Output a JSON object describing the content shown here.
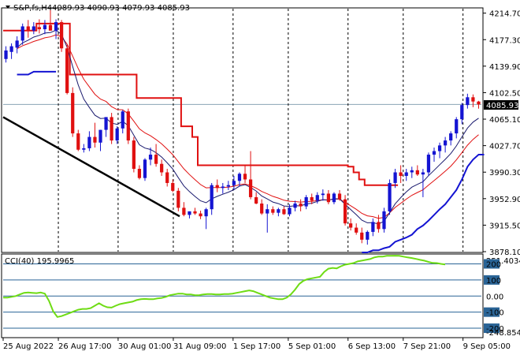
{
  "header": {
    "symbol_line": "S&P,fs,H4",
    "ohlc": "4089.93 4090.93 4079.93 4085.93",
    "menu_icon": "triangle-down-icon"
  },
  "price_axis": {
    "labels": [
      "4214.70",
      "4177.30",
      "4139.90",
      "4102.50",
      "4065.10",
      "4027.70",
      "3990.30",
      "3952.90",
      "3915.50",
      "3878.10"
    ],
    "current_price_tag": "4085.93"
  },
  "cci": {
    "label": "CCI(40) 195.9965",
    "axis_labels": [
      "251.4034",
      "200",
      "100",
      "0.00",
      "-100",
      "-200",
      "-248.8547"
    ],
    "levels": [
      200,
      100,
      0,
      -100,
      -200
    ],
    "range": [
      -248.8547,
      251.4034
    ]
  },
  "time_axis": {
    "labels": [
      "25 Aug 2022",
      "26 Aug 17:00",
      "30 Aug 01:00",
      "31 Aug 09:00",
      "1 Sep 17:00",
      "5 Sep 01:00",
      "6 Sep 13:00",
      "7 Sep 21:00",
      "9 Sep 05:00"
    ]
  },
  "colors": {
    "bull": "#1414d2",
    "bear": "#e01010",
    "envelope_upper": "#e01010",
    "envelope_lower": "#1414d2",
    "ema_fast": "#e01010",
    "ema_slow": "#1a1a6e",
    "trendline": "#000000",
    "cci_line": "#6edc14",
    "cci_level": "#2a6496",
    "price_tag_bg": "#000000"
  },
  "chart_data": {
    "type": "candlestick",
    "ylim": [
      3878.1,
      4221.0
    ],
    "candles": [
      [
        4150,
        4168,
        4145,
        4162
      ],
      [
        4160,
        4172,
        4150,
        4168
      ],
      [
        4166,
        4182,
        4158,
        4176
      ],
      [
        4176,
        4200,
        4170,
        4196
      ],
      [
        4196,
        4205,
        4180,
        4190
      ],
      [
        4190,
        4202,
        4185,
        4196
      ],
      [
        4195,
        4206,
        4186,
        4192
      ],
      [
        4192,
        4205,
        4185,
        4198
      ],
      [
        4198,
        4220,
        4190,
        4190
      ],
      [
        4190,
        4206,
        4178,
        4202
      ],
      [
        4202,
        4205,
        4160,
        4165
      ],
      [
        4165,
        4170,
        4100,
        4102
      ],
      [
        4102,
        4110,
        4040,
        4045
      ],
      [
        4045,
        4050,
        4020,
        4022
      ],
      [
        4022,
        4030,
        4018,
        4024
      ],
      [
        4024,
        4048,
        4020,
        4040
      ],
      [
        4040,
        4060,
        4025,
        4032
      ],
      [
        4032,
        4050,
        4020,
        4050
      ],
      [
        4050,
        4068,
        4040,
        4068
      ],
      [
        4068,
        4074,
        4030,
        4035
      ],
      [
        4035,
        4055,
        4030,
        4052
      ],
      [
        4052,
        4078,
        4045,
        4076
      ],
      [
        4076,
        4080,
        4030,
        4035
      ],
      [
        4035,
        4040,
        3990,
        3995
      ],
      [
        3995,
        4000,
        3980,
        3982
      ],
      [
        3982,
        4010,
        3978,
        4008
      ],
      [
        4008,
        4025,
        4000,
        4015
      ],
      [
        4015,
        4030,
        3998,
        4002
      ],
      [
        4002,
        4008,
        3985,
        3990
      ],
      [
        3990,
        3995,
        3970,
        3975
      ],
      [
        3975,
        3980,
        3962,
        3964
      ],
      [
        3964,
        3968,
        3935,
        3940
      ],
      [
        3940,
        3948,
        3928,
        3930
      ],
      [
        3930,
        3935,
        3925,
        3935
      ],
      [
        3935,
        3940,
        3930,
        3932
      ],
      [
        3932,
        3936,
        3924,
        3928
      ],
      [
        3928,
        3940,
        3910,
        3938
      ],
      [
        3938,
        3975,
        3930,
        3972
      ],
      [
        3972,
        3980,
        3962,
        3968
      ],
      [
        3968,
        3975,
        3960,
        3970
      ],
      [
        3970,
        3978,
        3965,
        3972
      ],
      [
        3972,
        3985,
        3965,
        3978
      ],
      [
        3978,
        3990,
        3970,
        3988
      ],
      [
        3988,
        4000,
        3975,
        3980
      ],
      [
        3980,
        4020,
        3952,
        3955
      ],
      [
        3955,
        3962,
        3945,
        3946
      ],
      [
        3946,
        3952,
        3930,
        3932
      ],
      [
        3932,
        3945,
        3905,
        3938
      ],
      [
        3938,
        3942,
        3930,
        3933
      ],
      [
        3933,
        3940,
        3928,
        3938
      ],
      [
        3938,
        3942,
        3930,
        3931
      ],
      [
        3931,
        3945,
        3928,
        3940
      ],
      [
        3940,
        3950,
        3935,
        3946
      ],
      [
        3946,
        3952,
        3935,
        3942
      ],
      [
        3942,
        3958,
        3938,
        3955
      ],
      [
        3955,
        3960,
        3945,
        3950
      ],
      [
        3950,
        3962,
        3946,
        3958
      ],
      [
        3958,
        3966,
        3950,
        3960
      ],
      [
        3960,
        3965,
        3945,
        3948
      ],
      [
        3948,
        3962,
        3945,
        3960
      ],
      [
        3960,
        3965,
        3950,
        3952
      ],
      [
        3952,
        3958,
        3915,
        3918
      ],
      [
        3918,
        3925,
        3908,
        3912
      ],
      [
        3912,
        3918,
        3902,
        3905
      ],
      [
        3905,
        3912,
        3890,
        3895
      ],
      [
        3895,
        3908,
        3888,
        3906
      ],
      [
        3906,
        3925,
        3900,
        3920
      ],
      [
        3920,
        3930,
        3905,
        3910
      ],
      [
        3910,
        3940,
        3905,
        3935
      ],
      [
        3935,
        3980,
        3930,
        3975
      ],
      [
        3975,
        3995,
        3968,
        3990
      ],
      [
        3990,
        4000,
        3975,
        3985
      ],
      [
        3985,
        3995,
        3978,
        3990
      ],
      [
        3990,
        3998,
        3982,
        3993
      ],
      [
        3993,
        4000,
        3985,
        3987
      ],
      [
        3987,
        3995,
        3955,
        3990
      ],
      [
        3990,
        4018,
        3985,
        4015
      ],
      [
        4015,
        4025,
        4005,
        4020
      ],
      [
        4020,
        4032,
        4010,
        4028
      ],
      [
        4028,
        4040,
        4018,
        4035
      ],
      [
        4035,
        4048,
        4028,
        4045
      ],
      [
        4045,
        4068,
        4038,
        4065
      ],
      [
        4065,
        4088,
        4058,
        4085
      ],
      [
        4085,
        4101,
        4080,
        4096
      ],
      [
        4096,
        4100,
        4082,
        4090
      ],
      [
        4089.93,
        4090.93,
        4079.93,
        4085.93
      ]
    ],
    "upper_envelope": [
      4190,
      4190,
      4190,
      4190,
      4190,
      4190,
      4200,
      4200,
      4200,
      4200,
      4200,
      4200,
      4128,
      4128,
      4128,
      4128,
      4128,
      4128,
      4128,
      4128,
      4128,
      4128,
      4128,
      4128,
      4095,
      4095,
      4095,
      4095,
      4095,
      4095,
      4095,
      4095,
      4055,
      4055,
      4040,
      4000,
      4000,
      4000,
      4000,
      4000,
      4000,
      4000,
      4000,
      4000,
      4000,
      4000,
      4000,
      4000,
      4000,
      4000,
      4000,
      4000,
      4000,
      4000,
      4000,
      4000,
      4000,
      4000,
      4000,
      4000,
      4000,
      4000,
      3998,
      3990,
      3980,
      3972,
      3972,
      3972,
      3972,
      3972,
      3972
    ],
    "lower_envelope_start": 2,
    "lower_envelope": [
      4128,
      4128,
      4128,
      4132,
      4132,
      4132,
      4132,
      4132
    ],
    "lower_envelope2_start": 64,
    "lower_envelope2": [
      3877,
      3877,
      3880,
      3880,
      3883,
      3885,
      3892,
      3895,
      3898,
      3902,
      3910,
      3915,
      3922,
      3930,
      3938,
      3945,
      3955,
      3965,
      3980,
      3998,
      4008,
      4015,
      4015
    ],
    "cci_values": [
      -10,
      -10,
      -5,
      0,
      10,
      20,
      22,
      20,
      18,
      22,
      15,
      -30,
      -95,
      -130,
      -125,
      -115,
      -105,
      -95,
      -85,
      -80,
      -80,
      -75,
      -60,
      -45,
      -60,
      -70,
      -72,
      -60,
      -50,
      -45,
      -40,
      -35,
      -25,
      -20,
      -18,
      -20,
      -20,
      -15,
      -12,
      -5,
      5,
      10,
      15,
      15,
      10,
      10,
      5,
      5,
      10,
      12,
      12,
      10,
      10,
      12,
      12,
      15,
      20,
      25,
      30,
      35,
      30,
      20,
      10,
      0,
      -10,
      -15,
      -20,
      -20,
      -10,
      10,
      40,
      75,
      95,
      105,
      110,
      115,
      120,
      150,
      170,
      175,
      172,
      185,
      195,
      200,
      205,
      215,
      220,
      225,
      230,
      240,
      245,
      245,
      250,
      250,
      251,
      250,
      245,
      240,
      236,
      231,
      225,
      220,
      212,
      206,
      205,
      200,
      196
    ]
  }
}
